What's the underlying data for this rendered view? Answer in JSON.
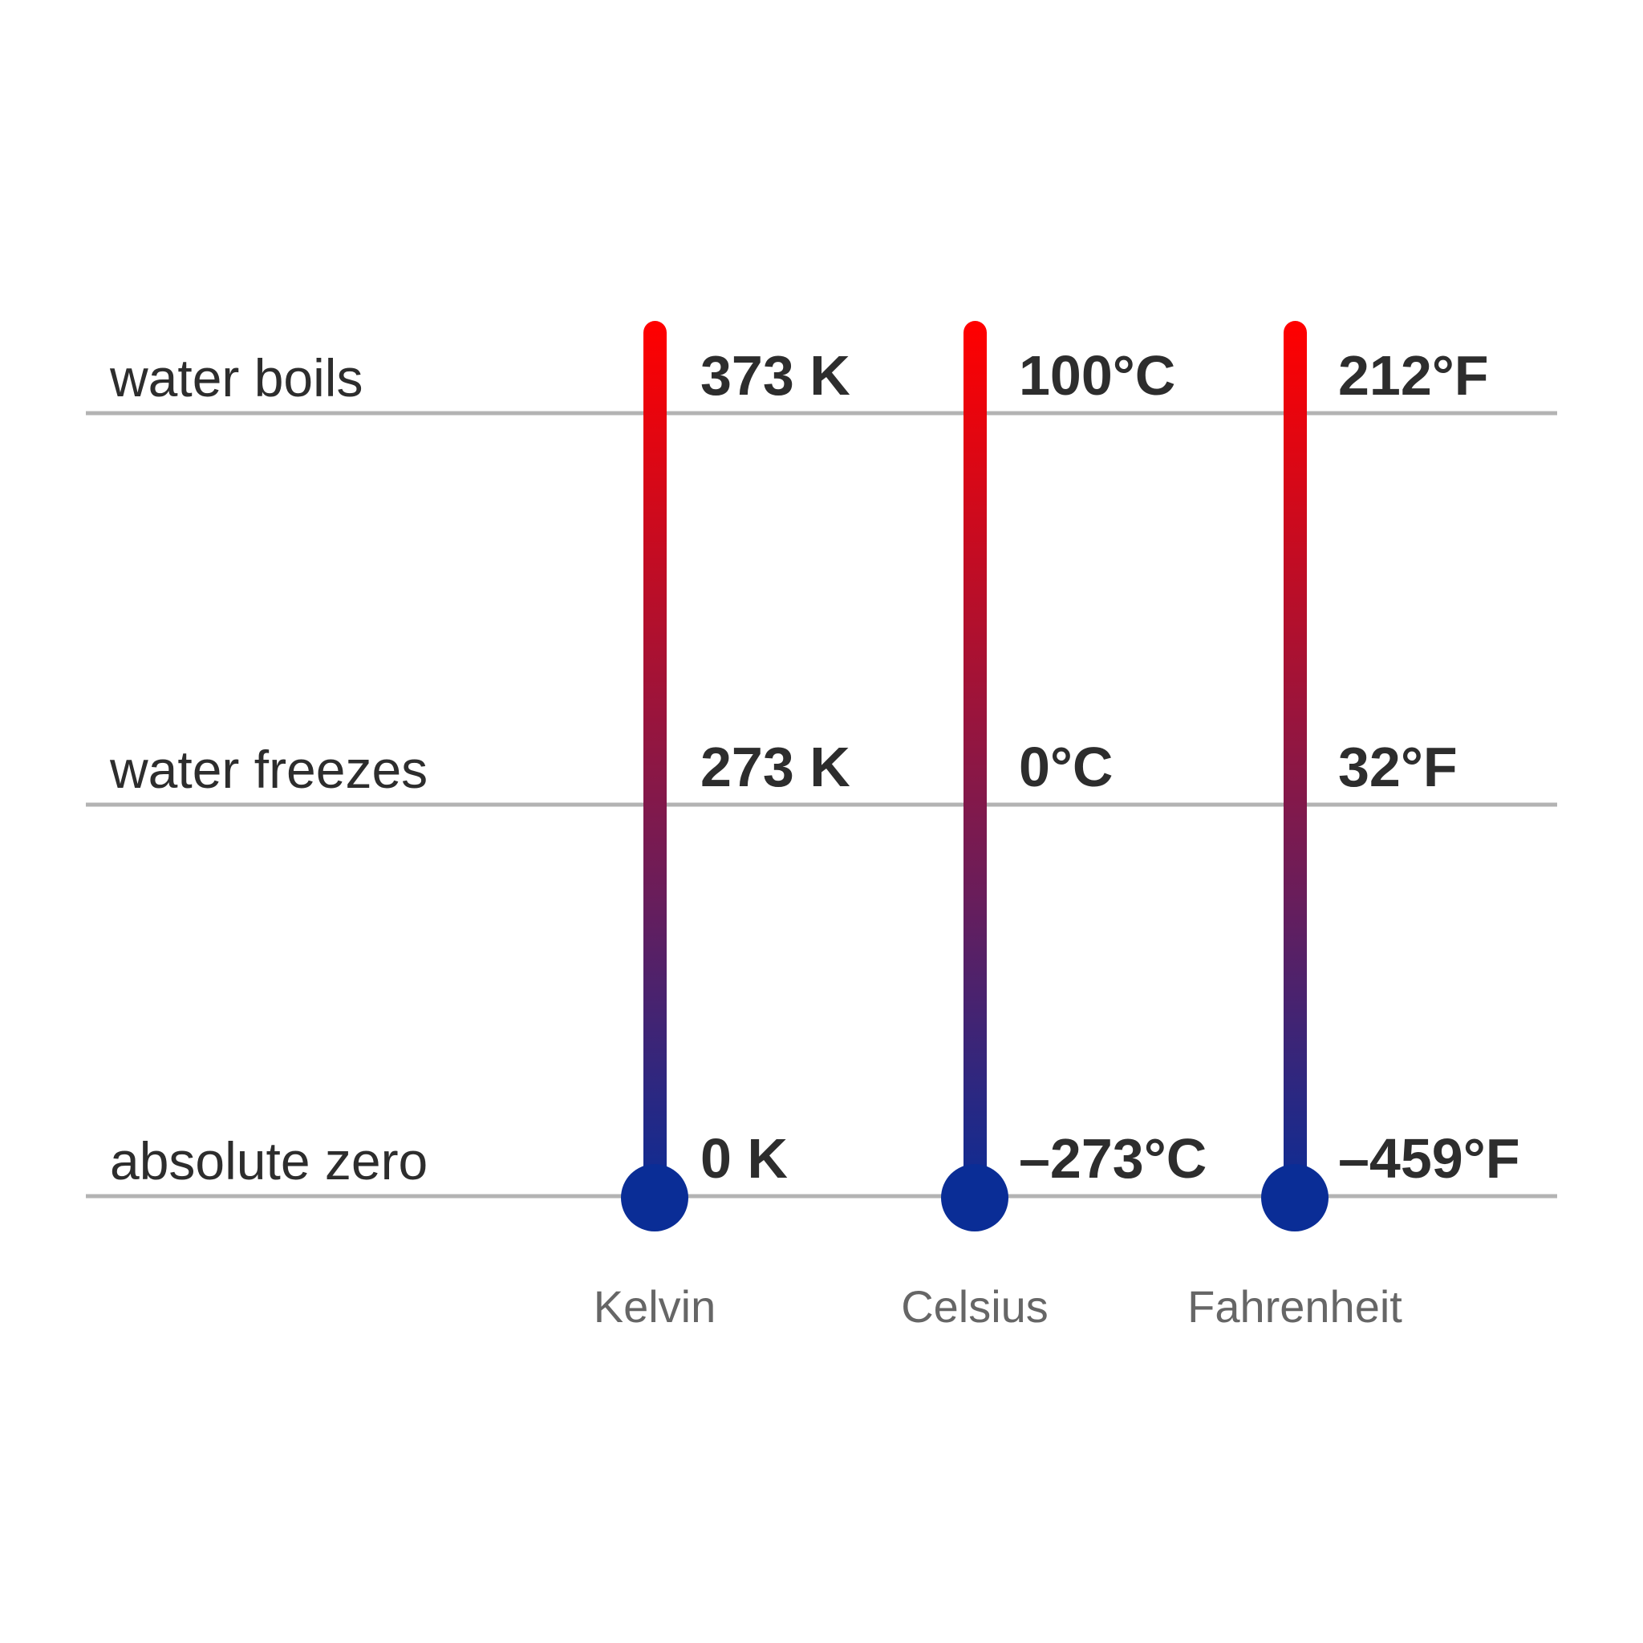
{
  "rows": [
    {
      "label": "water boils"
    },
    {
      "label": "water freezes"
    },
    {
      "label": "absolute zero"
    }
  ],
  "scales": [
    {
      "name": "Kelvin",
      "values": [
        "373 K",
        "273 K",
        "0 K"
      ]
    },
    {
      "name": "Celsius",
      "values": [
        "100°C",
        "0°C",
        "–273°C"
      ]
    },
    {
      "name": "Fahrenheit",
      "values": [
        "212°F",
        "32°F",
        "–459°F"
      ]
    }
  ],
  "colors": {
    "hot": "#ff0000",
    "cold": "#0a2d96",
    "line": "#b3b3b3",
    "text": "#2d2d2d"
  }
}
